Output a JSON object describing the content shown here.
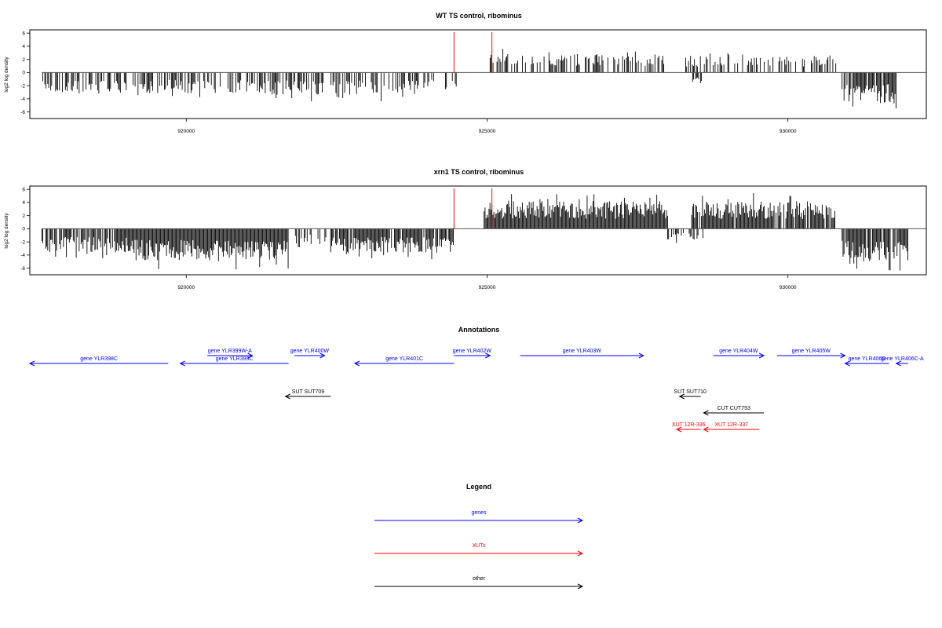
{
  "colors": {
    "genes": "#0000ff",
    "xuts": "#ff0000",
    "other": "#000000",
    "marker": "#ff0000",
    "bars": "#000000"
  },
  "chart_data": [
    {
      "type": "bar",
      "title": "WT TS control, ribominus",
      "ylabel": "log2 log density",
      "xlim": [
        917400,
        932300
      ],
      "ylim": [
        -7,
        6.5
      ],
      "xticks": [
        920000,
        925000,
        930000
      ],
      "yticks": [
        -6,
        -4,
        -2,
        0,
        2,
        4,
        6
      ],
      "baseline": {
        "from": 917600,
        "to": 932300,
        "value": 0
      },
      "markers": [
        924450,
        925080
      ],
      "segments": [
        {
          "from": 917600,
          "to": 920400,
          "sign": -1,
          "density": 0.55,
          "amp": 3.2,
          "seed": 11
        },
        {
          "from": 920400,
          "to": 923900,
          "sign": -1,
          "density": 0.5,
          "amp": 3.4,
          "seed": 12
        },
        {
          "from": 923900,
          "to": 924500,
          "sign": -1,
          "density": 0.25,
          "amp": 2.5,
          "seed": 13
        },
        {
          "from": 925050,
          "to": 928000,
          "sign": 1,
          "density": 0.45,
          "amp": 2.8,
          "seed": 14
        },
        {
          "from": 928300,
          "to": 930800,
          "sign": 1,
          "density": 0.4,
          "amp": 2.6,
          "seed": 15
        },
        {
          "from": 930900,
          "to": 931800,
          "sign": -1,
          "density": 0.9,
          "amp": 4.8,
          "seed": 16
        },
        {
          "from": 928400,
          "to": 928600,
          "sign": -1,
          "density": 0.6,
          "amp": 1.8,
          "seed": 17
        }
      ]
    },
    {
      "type": "bar",
      "title": "xrn1 TS control, ribominus",
      "ylabel": "log2 log density",
      "xlim": [
        917400,
        932300
      ],
      "ylim": [
        -7,
        6.5
      ],
      "xticks": [
        920000,
        925000,
        930000
      ],
      "yticks": [
        -6,
        -4,
        -2,
        0,
        2,
        4,
        6
      ],
      "baseline": {
        "from": 917600,
        "to": 932300,
        "value": 0
      },
      "markers": [
        924450,
        925080
      ],
      "segments": [
        {
          "from": 917600,
          "to": 919100,
          "sign": -1,
          "density": 0.75,
          "amp": 3.6,
          "seed": 21
        },
        {
          "from": 919100,
          "to": 921700,
          "sign": -1,
          "density": 1.0,
          "amp": 4.8,
          "seed": 22
        },
        {
          "from": 921700,
          "to": 922400,
          "sign": -1,
          "density": 0.5,
          "amp": 2.5,
          "seed": 23
        },
        {
          "from": 922400,
          "to": 924450,
          "sign": -1,
          "density": 0.9,
          "amp": 3.6,
          "seed": 24
        },
        {
          "from": 924950,
          "to": 928000,
          "sign": 1,
          "density": 1.0,
          "amp": 4.2,
          "seed": 25
        },
        {
          "from": 928400,
          "to": 930800,
          "sign": 1,
          "density": 0.9,
          "amp": 4.2,
          "seed": 26
        },
        {
          "from": 930900,
          "to": 932000,
          "sign": -1,
          "density": 0.9,
          "amp": 5.0,
          "seed": 27
        },
        {
          "from": 928000,
          "to": 928600,
          "sign": -1,
          "density": 0.4,
          "amp": 1.8,
          "seed": 28
        }
      ]
    }
  ],
  "annotations": {
    "title": "Annotations",
    "features": [
      {
        "label": "gene YLR398C",
        "color": "genes",
        "x1": 917400,
        "x2": 919700,
        "dir": "left",
        "row": 1
      },
      {
        "label": "gene YLR399W-A",
        "color": "genes",
        "x1": 920350,
        "x2": 921100,
        "dir": "right",
        "row": 0
      },
      {
        "label": "gene YLR399C",
        "color": "genes",
        "x1": 919900,
        "x2": 921700,
        "dir": "left",
        "row": 1
      },
      {
        "label": "gene YLR400W",
        "color": "genes",
        "x1": 921800,
        "x2": 922300,
        "dir": "right",
        "row": 0
      },
      {
        "label": "gene YLR401C",
        "color": "genes",
        "x1": 922800,
        "x2": 924450,
        "dir": "left",
        "row": 1
      },
      {
        "label": "gene YLR402W",
        "color": "genes",
        "x1": 924450,
        "x2": 925050,
        "dir": "right",
        "row": 0
      },
      {
        "label": "gene YLR403W",
        "color": "genes",
        "x1": 925550,
        "x2": 927600,
        "dir": "right",
        "row": 0
      },
      {
        "label": "gene YLR404W",
        "color": "genes",
        "x1": 928760,
        "x2": 929600,
        "dir": "right",
        "row": 0
      },
      {
        "label": "gene YLR405W",
        "color": "genes",
        "x1": 929820,
        "x2": 930950,
        "dir": "right",
        "row": 0
      },
      {
        "label": "gene YLR406C",
        "color": "genes",
        "x1": 930950,
        "x2": 931680,
        "dir": "left",
        "row": 1
      },
      {
        "label": "gene YLR406C-A",
        "color": "genes",
        "x1": 931800,
        "x2": 932000,
        "dir": "left",
        "row": 1
      },
      {
        "label": "SUT SUT709",
        "color": "other",
        "x1": 921650,
        "x2": 922400,
        "dir": "left",
        "row": 2
      },
      {
        "label": "SUT SUT710",
        "color": "other",
        "x1": 928200,
        "x2": 928550,
        "dir": "left",
        "row": 2
      },
      {
        "label": "CUT CUT753",
        "color": "other",
        "x1": 928600,
        "x2": 929600,
        "dir": "left",
        "row": 3
      },
      {
        "label": "XUT 12R-336",
        "color": "xuts",
        "x1": 928150,
        "x2": 928550,
        "dir": "left",
        "row": 4
      },
      {
        "label": "XUT 12R-337",
        "color": "xuts",
        "x1": 928600,
        "x2": 929520,
        "dir": "left",
        "row": 4
      }
    ]
  },
  "legend": {
    "title": "Legend",
    "items": [
      {
        "label": "genes",
        "color": "genes"
      },
      {
        "label": "XUTs",
        "color": "xuts"
      },
      {
        "label": "other",
        "color": "other"
      }
    ]
  }
}
